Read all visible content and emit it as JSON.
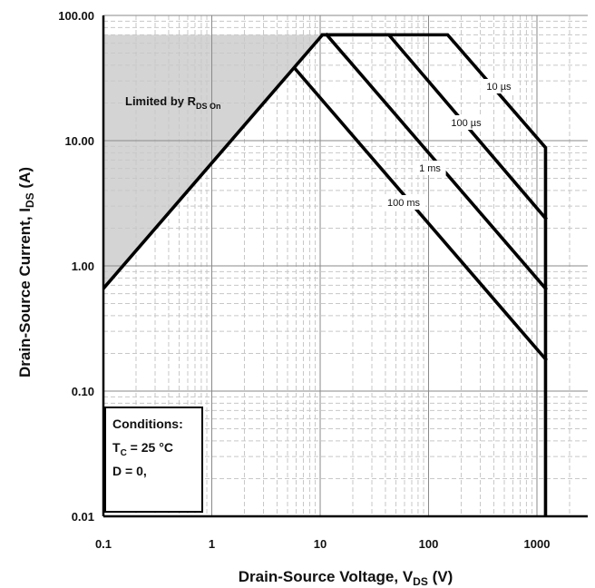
{
  "chart_data": {
    "type": "line",
    "xscale": "log",
    "yscale": "log",
    "xlim": [
      0.1,
      3000
    ],
    "ylim": [
      0.01,
      100
    ],
    "grid": true,
    "xlabel_main": "Drain-Source Voltage, V",
    "xlabel_sub": "DS",
    "xlabel_unit": " (V)",
    "ylabel_main": "Drain-Source Current, I",
    "ylabel_sub": "DS",
    "ylabel_unit": " (A)",
    "x_ticks": [
      0.1,
      1,
      10,
      100,
      1000
    ],
    "x_tick_labels": [
      "0.1",
      "1",
      "10",
      "100",
      "1000"
    ],
    "y_ticks": [
      0.01,
      0.1,
      1,
      10,
      100
    ],
    "y_tick_labels": [
      "0.01",
      "0.10",
      "1.00",
      "10.00",
      "100.00"
    ],
    "limited_region": {
      "label_main": "Limited by R",
      "label_sub": "DS On",
      "points": [
        [
          0.1,
          0.66
        ],
        [
          10.5,
          70
        ],
        [
          0.1,
          70
        ]
      ]
    },
    "series": [
      {
        "name": "10 µs",
        "points": [
          [
            0.1,
            0.66
          ],
          [
            10.5,
            70
          ],
          [
            150,
            70
          ],
          [
            1200,
            8.8
          ],
          [
            1200,
            0.01
          ]
        ]
      },
      {
        "name": "100 µs",
        "points": [
          [
            10.5,
            70
          ],
          [
            43,
            70
          ],
          [
            1200,
            2.4
          ]
        ]
      },
      {
        "name": "1 ms",
        "points": [
          [
            11.5,
            70
          ],
          [
            1200,
            0.66
          ]
        ]
      },
      {
        "name": "100 ms",
        "points": [
          [
            5.8,
            38
          ],
          [
            1200,
            0.18
          ]
        ]
      }
    ],
    "conditions": {
      "title": "Conditions:",
      "line1_main": "T",
      "line1_sub": "C",
      "line1_rest": " = 25 °C",
      "line2": "D = 0,"
    }
  }
}
